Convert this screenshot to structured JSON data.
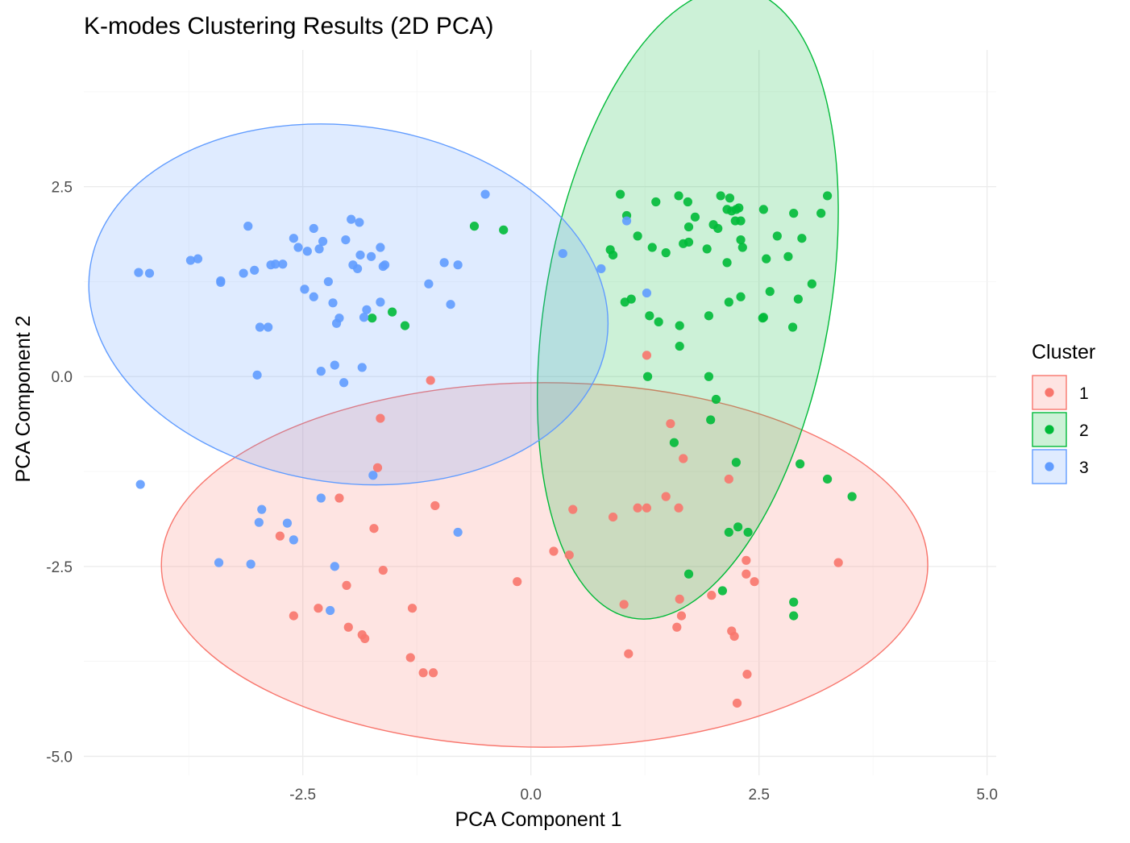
{
  "chart_data": {
    "type": "scatter",
    "title": "K-modes Clustering Results (2D PCA)",
    "xlabel": "PCA Component 1",
    "ylabel": "PCA Component 2",
    "xlim": [
      -4.9,
      5.1
    ],
    "ylim": [
      -5.25,
      4.3
    ],
    "x_ticks": [
      -2.5,
      0.0,
      2.5,
      5.0
    ],
    "y_ticks": [
      -5.0,
      -2.5,
      0.0,
      2.5
    ],
    "x_tick_labels": [
      "-2.5",
      "0.0",
      "2.5",
      "5.0"
    ],
    "y_tick_labels": [
      "-5.0",
      "-2.5",
      "0.0",
      "2.5"
    ],
    "grid": true,
    "legend": {
      "title": "Cluster",
      "position": "right"
    },
    "series": [
      {
        "name": "1",
        "color": "#F8766D",
        "ellipse": {
          "cx": 0.15,
          "cy": -2.48,
          "rx": 4.2,
          "ry": 2.4
        },
        "points": [
          [
            -1.1,
            -0.05
          ],
          [
            -1.65,
            -0.55
          ],
          [
            -1.68,
            -1.2
          ],
          [
            -2.1,
            -1.6
          ],
          [
            -1.72,
            -2.0
          ],
          [
            -1.05,
            -1.7
          ],
          [
            -2.75,
            -2.1
          ],
          [
            -1.62,
            -2.55
          ],
          [
            -2.02,
            -2.75
          ],
          [
            -2.6,
            -3.15
          ],
          [
            -2.33,
            -3.05
          ],
          [
            -1.3,
            -3.05
          ],
          [
            -2.0,
            -3.3
          ],
          [
            -1.85,
            -3.4
          ],
          [
            -1.82,
            -3.45
          ],
          [
            -1.32,
            -3.7
          ],
          [
            -1.18,
            -3.9
          ],
          [
            -1.07,
            -3.9
          ],
          [
            -0.15,
            -2.7
          ],
          [
            0.25,
            -2.3
          ],
          [
            0.42,
            -2.35
          ],
          [
            0.46,
            -1.75
          ],
          [
            0.9,
            -1.85
          ],
          [
            1.17,
            -1.73
          ],
          [
            1.27,
            -1.73
          ],
          [
            1.48,
            -1.58
          ],
          [
            1.62,
            -1.73
          ],
          [
            1.02,
            -3.0
          ],
          [
            1.07,
            -3.65
          ],
          [
            1.63,
            -2.93
          ],
          [
            1.65,
            -3.15
          ],
          [
            1.6,
            -3.3
          ],
          [
            1.98,
            -2.88
          ],
          [
            2.2,
            -3.35
          ],
          [
            2.23,
            -3.42
          ],
          [
            2.36,
            -2.42
          ],
          [
            2.36,
            -2.6
          ],
          [
            2.45,
            -2.7
          ],
          [
            2.37,
            -3.92
          ],
          [
            2.26,
            -4.3
          ],
          [
            3.37,
            -2.45
          ],
          [
            1.27,
            0.28
          ],
          [
            1.53,
            -0.62
          ],
          [
            1.67,
            -1.08
          ],
          [
            2.17,
            -1.35
          ]
        ]
      },
      {
        "name": "2",
        "color": "#00BA38",
        "ellipse": {
          "cx": 1.72,
          "cy": 0.96,
          "rx": 3.5,
          "ry": 1.87,
          "angle": 80
        },
        "points": [
          [
            -0.62,
            1.98
          ],
          [
            -0.3,
            1.93
          ],
          [
            -1.52,
            0.85
          ],
          [
            -1.74,
            0.77
          ],
          [
            -1.38,
            0.67
          ],
          [
            0.87,
            1.67
          ],
          [
            0.9,
            1.6
          ],
          [
            0.98,
            2.4
          ],
          [
            1.05,
            2.12
          ],
          [
            1.17,
            1.85
          ],
          [
            1.33,
            1.7
          ],
          [
            1.37,
            2.3
          ],
          [
            1.48,
            1.63
          ],
          [
            1.62,
            2.38
          ],
          [
            1.67,
            1.75
          ],
          [
            1.73,
            1.97
          ],
          [
            1.73,
            1.77
          ],
          [
            1.8,
            2.1
          ],
          [
            1.72,
            2.3
          ],
          [
            1.93,
            1.68
          ],
          [
            2.0,
            2.0
          ],
          [
            2.05,
            1.95
          ],
          [
            2.08,
            2.38
          ],
          [
            2.15,
            2.2
          ],
          [
            2.18,
            2.35
          ],
          [
            2.2,
            2.18
          ],
          [
            2.25,
            2.2
          ],
          [
            2.28,
            2.22
          ],
          [
            2.24,
            2.05
          ],
          [
            2.3,
            2.05
          ],
          [
            2.3,
            1.8
          ],
          [
            2.32,
            1.7
          ],
          [
            2.15,
            1.5
          ],
          [
            2.55,
            2.2
          ],
          [
            2.7,
            1.85
          ],
          [
            2.58,
            1.55
          ],
          [
            2.82,
            1.58
          ],
          [
            2.88,
            2.15
          ],
          [
            2.97,
            1.82
          ],
          [
            3.18,
            2.15
          ],
          [
            3.25,
            2.38
          ],
          [
            1.03,
            0.98
          ],
          [
            1.1,
            1.02
          ],
          [
            1.3,
            0.8
          ],
          [
            1.4,
            0.72
          ],
          [
            1.63,
            0.67
          ],
          [
            1.63,
            0.4
          ],
          [
            1.95,
            0.8
          ],
          [
            2.17,
            0.98
          ],
          [
            2.3,
            1.05
          ],
          [
            2.62,
            1.12
          ],
          [
            2.87,
            0.65
          ],
          [
            2.93,
            1.02
          ],
          [
            3.08,
            1.22
          ],
          [
            2.54,
            0.77
          ],
          [
            2.55,
            0.78
          ],
          [
            1.28,
            0.0
          ],
          [
            1.95,
            0.0
          ],
          [
            2.03,
            -0.3
          ],
          [
            1.97,
            -0.57
          ],
          [
            1.57,
            -0.87
          ],
          [
            2.25,
            -1.13
          ],
          [
            2.95,
            -1.15
          ],
          [
            3.25,
            -1.35
          ],
          [
            3.52,
            -1.58
          ],
          [
            2.27,
            -1.98
          ],
          [
            2.17,
            -2.05
          ],
          [
            2.38,
            -2.05
          ],
          [
            1.73,
            -2.6
          ],
          [
            2.1,
            -2.82
          ],
          [
            2.88,
            -2.97
          ],
          [
            2.88,
            -3.15
          ]
        ]
      },
      {
        "name": "3",
        "color": "#619CFF",
        "ellipse": {
          "cx": -2.0,
          "cy": 0.95,
          "rx": 2.86,
          "ry": 2.35,
          "angle": -8
        },
        "points": [
          [
            -4.3,
            1.37
          ],
          [
            -4.18,
            1.36
          ],
          [
            -3.73,
            1.53
          ],
          [
            -3.65,
            1.55
          ],
          [
            -3.4,
            1.26
          ],
          [
            -3.4,
            1.24
          ],
          [
            -3.15,
            1.36
          ],
          [
            -3.03,
            1.4
          ],
          [
            -3.1,
            1.98
          ],
          [
            -2.85,
            1.47
          ],
          [
            -2.8,
            1.48
          ],
          [
            -2.72,
            1.48
          ],
          [
            -2.6,
            1.82
          ],
          [
            -2.55,
            1.7
          ],
          [
            -2.45,
            1.65
          ],
          [
            -2.38,
            1.95
          ],
          [
            -2.32,
            1.68
          ],
          [
            -2.28,
            1.78
          ],
          [
            -2.48,
            1.15
          ],
          [
            -2.38,
            1.05
          ],
          [
            -2.22,
            1.25
          ],
          [
            -2.17,
            0.97
          ],
          [
            -2.1,
            0.77
          ],
          [
            -2.13,
            0.7
          ],
          [
            -2.88,
            0.65
          ],
          [
            -2.97,
            0.65
          ],
          [
            -1.97,
            2.07
          ],
          [
            -1.88,
            2.03
          ],
          [
            -2.03,
            1.8
          ],
          [
            -1.95,
            1.47
          ],
          [
            -1.9,
            1.42
          ],
          [
            -1.87,
            1.6
          ],
          [
            -1.75,
            1.58
          ],
          [
            -1.65,
            1.7
          ],
          [
            -1.62,
            1.45
          ],
          [
            -1.6,
            1.47
          ],
          [
            -1.65,
            0.98
          ],
          [
            -1.8,
            0.88
          ],
          [
            -1.83,
            0.78
          ],
          [
            -2.15,
            0.15
          ],
          [
            -2.3,
            0.07
          ],
          [
            -1.85,
            0.12
          ],
          [
            -2.05,
            -0.08
          ],
          [
            -3.0,
            0.02
          ],
          [
            -0.5,
            2.4
          ],
          [
            -0.95,
            1.5
          ],
          [
            -0.8,
            1.47
          ],
          [
            -1.12,
            1.22
          ],
          [
            -0.88,
            0.95
          ],
          [
            -4.28,
            -1.42
          ],
          [
            -1.73,
            -1.3
          ],
          [
            -2.3,
            -1.6
          ],
          [
            -2.95,
            -1.75
          ],
          [
            -2.98,
            -1.92
          ],
          [
            -2.67,
            -1.93
          ],
          [
            -2.6,
            -2.15
          ],
          [
            -3.42,
            -2.45
          ],
          [
            -3.07,
            -2.47
          ],
          [
            -2.15,
            -2.5
          ],
          [
            -2.2,
            -3.08
          ],
          [
            -0.8,
            -2.05
          ],
          [
            0.35,
            1.62
          ],
          [
            0.77,
            1.42
          ],
          [
            1.05,
            2.05
          ],
          [
            1.27,
            1.1
          ]
        ]
      }
    ]
  }
}
